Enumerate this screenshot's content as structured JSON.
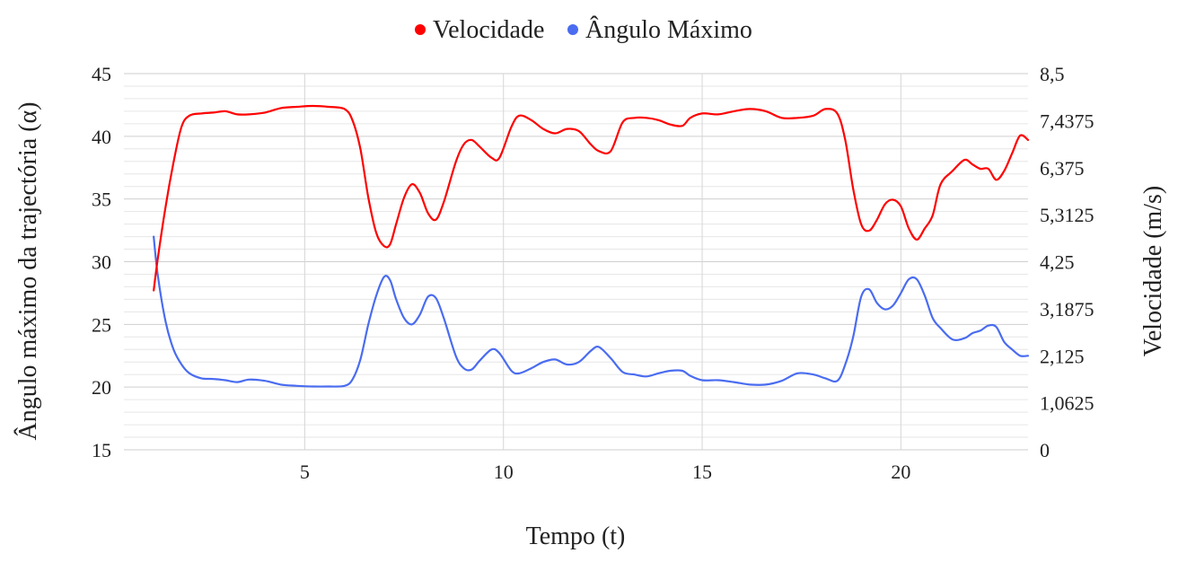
{
  "chart_data": {
    "type": "line",
    "legend": {
      "placement": "top-center",
      "items": [
        {
          "label": "Velocidade",
          "color": "#ff0000"
        },
        {
          "label": "Ângulo Máximo",
          "color": "#4a6cf0"
        }
      ]
    },
    "xlabel": "Tempo (t)",
    "ylabel_left": "Ângulo máximo da trajectória (α)",
    "ylabel_right": "Velocidade (m/s)",
    "xlim": [
      0.45,
      23.2
    ],
    "ylim_left": [
      15,
      45
    ],
    "ylim_right": [
      0,
      8.5
    ],
    "x_ticks": [
      "5",
      "10",
      "15",
      "20"
    ],
    "x_tick_values": [
      5,
      10,
      15,
      20
    ],
    "y_left_ticks": [
      "15",
      "20",
      "25",
      "30",
      "35",
      "40",
      "45"
    ],
    "y_left_tick_values": [
      15,
      20,
      25,
      30,
      35,
      40,
      45
    ],
    "y_right_ticks": [
      "0",
      "1,0625",
      "2,125",
      "3,1875",
      "4,25",
      "5,3125",
      "6,375",
      "7,4375",
      "8,5"
    ],
    "y_right_tick_values": [
      0,
      1.0625,
      2.125,
      3.1875,
      4.25,
      5.3125,
      6.375,
      7.4375,
      8.5
    ],
    "grid": "major and minor horizontal, major vertical",
    "series": [
      {
        "name": "Velocidade",
        "axis": "right",
        "color": "#ff0000",
        "x": [
          1.2,
          1.3,
          1.5,
          1.7,
          1.9,
          2.1,
          2.4,
          2.7,
          3.0,
          3.3,
          3.6,
          4.0,
          4.4,
          4.8,
          5.2,
          5.6,
          6.0,
          6.2,
          6.4,
          6.6,
          6.8,
          7.0,
          7.15,
          7.3,
          7.5,
          7.7,
          7.9,
          8.1,
          8.3,
          8.5,
          8.8,
          9.0,
          9.2,
          9.4,
          9.7,
          9.9,
          10.2,
          10.4,
          10.7,
          11.0,
          11.3,
          11.6,
          11.9,
          12.2,
          12.4,
          12.7,
          13.0,
          13.3,
          13.6,
          13.9,
          14.2,
          14.5,
          14.7,
          15.0,
          15.4,
          15.8,
          16.2,
          16.6,
          17.0,
          17.4,
          17.8,
          18.1,
          18.4,
          18.6,
          18.8,
          19.0,
          19.2,
          19.4,
          19.6,
          19.8,
          20.0,
          20.2,
          20.4,
          20.6,
          20.8,
          21.0,
          21.3,
          21.6,
          21.8,
          22.0,
          22.2,
          22.4,
          22.6,
          22.8,
          23.0,
          23.2
        ],
        "y": [
          3.6,
          4.3,
          5.5,
          6.5,
          7.3,
          7.55,
          7.6,
          7.62,
          7.65,
          7.58,
          7.58,
          7.62,
          7.72,
          7.75,
          7.77,
          7.75,
          7.7,
          7.45,
          6.8,
          5.7,
          4.9,
          4.6,
          4.65,
          5.1,
          5.7,
          6.0,
          5.8,
          5.35,
          5.2,
          5.6,
          6.5,
          6.9,
          7.0,
          6.85,
          6.6,
          6.6,
          7.3,
          7.55,
          7.45,
          7.25,
          7.15,
          7.25,
          7.2,
          6.9,
          6.75,
          6.75,
          7.4,
          7.5,
          7.5,
          7.45,
          7.35,
          7.32,
          7.5,
          7.6,
          7.58,
          7.65,
          7.7,
          7.65,
          7.5,
          7.5,
          7.55,
          7.7,
          7.6,
          7.0,
          5.9,
          5.1,
          4.95,
          5.2,
          5.55,
          5.65,
          5.5,
          5.0,
          4.75,
          5.0,
          5.3,
          6.0,
          6.3,
          6.55,
          6.45,
          6.35,
          6.35,
          6.1,
          6.3,
          6.7,
          7.1,
          7.0
        ]
      },
      {
        "name": "Ângulo Máximo",
        "axis": "left",
        "color": "#4a6cf0",
        "x": [
          1.2,
          1.3,
          1.5,
          1.7,
          1.9,
          2.1,
          2.4,
          2.7,
          3.0,
          3.3,
          3.6,
          4.0,
          4.4,
          4.8,
          5.2,
          5.6,
          6.0,
          6.2,
          6.4,
          6.6,
          6.8,
          7.0,
          7.15,
          7.3,
          7.5,
          7.7,
          7.9,
          8.1,
          8.3,
          8.5,
          8.8,
          9.0,
          9.2,
          9.4,
          9.7,
          9.9,
          10.2,
          10.4,
          10.7,
          11.0,
          11.3,
          11.6,
          11.9,
          12.2,
          12.4,
          12.7,
          13.0,
          13.3,
          13.6,
          13.9,
          14.2,
          14.5,
          14.7,
          15.0,
          15.4,
          15.8,
          16.2,
          16.6,
          17.0,
          17.4,
          17.8,
          18.1,
          18.4,
          18.6,
          18.8,
          19.0,
          19.2,
          19.4,
          19.6,
          19.8,
          20.0,
          20.2,
          20.4,
          20.6,
          20.8,
          21.0,
          21.3,
          21.6,
          21.8,
          22.0,
          22.2,
          22.4,
          22.6,
          22.8,
          23.0,
          23.2
        ],
        "y": [
          32.0,
          29.0,
          25.2,
          23.0,
          21.8,
          21.1,
          20.7,
          20.65,
          20.55,
          20.4,
          20.6,
          20.5,
          20.2,
          20.1,
          20.05,
          20.05,
          20.1,
          20.6,
          22.2,
          25.0,
          27.3,
          28.8,
          28.5,
          27.0,
          25.5,
          25.0,
          25.8,
          27.2,
          27.1,
          25.5,
          22.5,
          21.5,
          21.4,
          22.1,
          23.0,
          22.7,
          21.3,
          21.1,
          21.5,
          22.0,
          22.2,
          21.8,
          22.0,
          22.9,
          23.2,
          22.3,
          21.2,
          21.0,
          20.85,
          21.1,
          21.3,
          21.3,
          20.9,
          20.55,
          20.55,
          20.4,
          20.2,
          20.2,
          20.5,
          21.1,
          21.0,
          20.7,
          20.5,
          21.8,
          24.0,
          27.2,
          27.8,
          26.7,
          26.2,
          26.5,
          27.5,
          28.6,
          28.6,
          27.3,
          25.5,
          24.7,
          23.8,
          23.9,
          24.3,
          24.5,
          24.9,
          24.8,
          23.6,
          23.0,
          22.5,
          22.5
        ]
      }
    ]
  }
}
